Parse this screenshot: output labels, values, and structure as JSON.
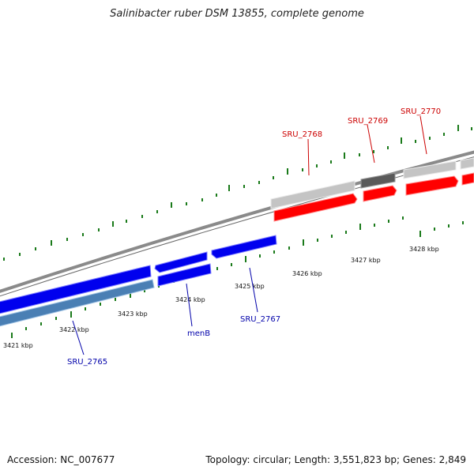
{
  "title": "Salinibacter ruber DSM 13855, complete genome",
  "footer": {
    "accession": "Accession: NC_007677",
    "summary": "Topology: circular; Length: 3,551,823 bp; Genes: 2,849"
  },
  "scale": {
    "ticks": [
      {
        "label": "3421 kbp"
      },
      {
        "label": "3422 kbp"
      },
      {
        "label": "3423 kbp"
      },
      {
        "label": "3424 kbp"
      },
      {
        "label": "3425 kbp"
      },
      {
        "label": "3426 kbp"
      },
      {
        "label": "3427 kbp"
      },
      {
        "label": "3428 kbp"
      }
    ]
  },
  "genes": {
    "forward": [
      {
        "label": "SRU_2768"
      },
      {
        "label": "SRU_2769"
      },
      {
        "label": "SRU_2770"
      }
    ],
    "reverse": [
      {
        "label": "SRU_2765"
      },
      {
        "label": "menB"
      },
      {
        "label": "SRU_2767"
      }
    ]
  },
  "colors": {
    "forward_cds": "#ff0000",
    "reverse_cds": "#0000ff",
    "gene_light": "#c4c4c4",
    "gene_dark": "#5a5a5a",
    "gene_steel": "#4a7fb4",
    "backbone": "#8c8c8c",
    "tick": "#1a7a1a",
    "forward_label": "#cc0000",
    "reverse_label": "#0000aa"
  }
}
